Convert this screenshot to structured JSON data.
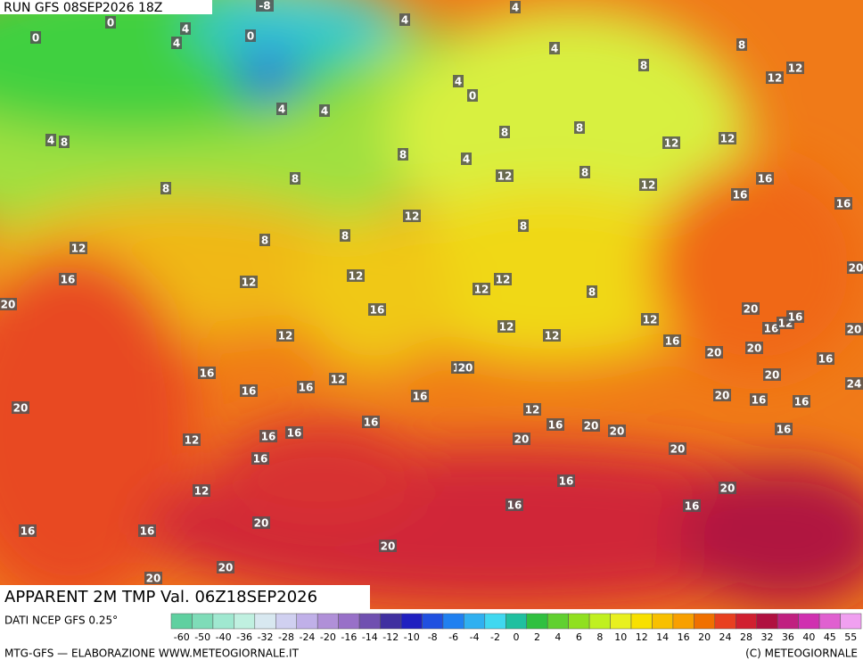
{
  "header": {
    "run": "RUN GFS 08SEP2026 18Z"
  },
  "footer": {
    "title": "APPARENT 2M TMP Val. 06Z18SEP2026",
    "source": "DATI NCEP GFS 0.25°",
    "credit_left": "MTG-GFS — ELABORAZIONE WWW.METEOGIORNALE.IT",
    "credit_right": "(C) METEOGIORNALE"
  },
  "map": {
    "labels": [
      0,
      0,
      4,
      4,
      0,
      -8,
      4,
      4,
      4,
      8,
      8,
      12,
      12,
      4,
      4,
      4,
      0,
      4,
      8,
      8,
      8,
      12,
      12,
      8,
      4,
      12,
      8,
      12,
      16,
      16,
      16,
      8,
      8,
      12,
      8,
      8,
      8,
      12,
      16,
      12,
      12,
      12,
      12,
      8,
      20,
      16,
      20,
      16,
      12,
      16,
      12,
      12,
      12,
      12,
      16,
      20,
      16,
      20,
      16,
      12,
      12,
      16,
      16,
      16,
      20,
      16,
      16,
      20,
      16,
      12,
      16,
      20,
      20,
      16,
      12,
      16,
      16,
      20,
      20,
      16,
      12,
      16,
      20,
      16,
      16,
      20,
      16,
      16,
      20,
      20,
      20,
      24,
      20,
      20,
      20,
      20
    ]
  },
  "colorbar": {
    "ticks": [
      -60,
      -50,
      -40,
      -36,
      -32,
      -28,
      -24,
      -20,
      -16,
      -14,
      -12,
      -10,
      -8,
      -6,
      -4,
      -2,
      0,
      2,
      4,
      6,
      8,
      10,
      12,
      14,
      16,
      20,
      24,
      28,
      32,
      36,
      40,
      45,
      55
    ],
    "colors": [
      "#5fd0a0",
      "#7fdcb8",
      "#a0e8d0",
      "#c0f0e0",
      "#d8e8f0",
      "#d0d0f0",
      "#c0b0e8",
      "#b090d8",
      "#9870c8",
      "#7050b0",
      "#4030a0",
      "#2020c0",
      "#2050e0",
      "#2080f0",
      "#30b0f0",
      "#40d8f0",
      "#20c0a0",
      "#30c040",
      "#60d030",
      "#90e020",
      "#c0f020",
      "#e8f020",
      "#f8e000",
      "#f8c000",
      "#f8a000",
      "#f07000",
      "#e84020",
      "#d02030",
      "#b01040",
      "#c02080",
      "#d030b0",
      "#e060d0",
      "#f0a0f0"
    ]
  }
}
